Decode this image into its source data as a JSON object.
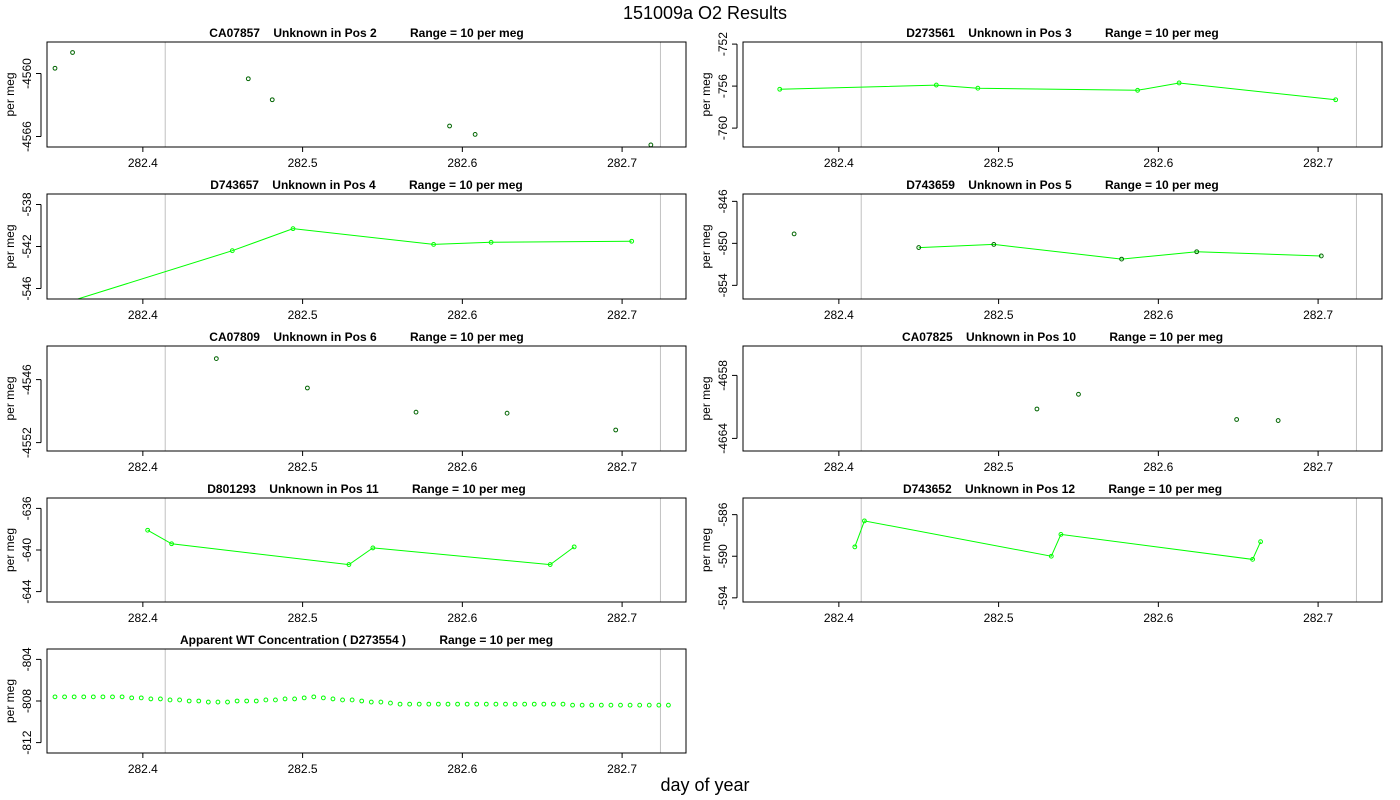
{
  "title": "151009a  O2 Results",
  "xlabel": "day of year",
  "colors": {
    "series": "#00ff00",
    "vline": "#c0c0c0",
    "axis": "#000000"
  },
  "chart_data": [
    {
      "type": "scatter",
      "title": "CA07857    Unknown in Pos 2          Range = 10 per meg",
      "ylabel": "per meg",
      "xlim": [
        282.34,
        282.74
      ],
      "ylim": [
        -4567.0,
        -4557.0
      ],
      "yticks": [
        -4560,
        -4566
      ],
      "xticks": [
        282.4,
        282.5,
        282.6,
        282.7
      ],
      "vlines": [
        282.414,
        282.724
      ],
      "points": [
        [
          282.345,
          -4559.5
        ],
        [
          282.356,
          -4558.0
        ],
        [
          282.466,
          -4560.5
        ],
        [
          282.481,
          -4562.5
        ],
        [
          282.592,
          -4565.0
        ],
        [
          282.608,
          -4565.8
        ],
        [
          282.718,
          -4566.8
        ]
      ],
      "segments": [],
      "marker_color": "#006400"
    },
    {
      "type": "line",
      "title": "D273561    Unknown in Pos 3          Range = 10 per meg",
      "ylabel": "per meg",
      "xlim": [
        282.34,
        282.74
      ],
      "ylim": [
        -761.8,
        -751.8
      ],
      "yticks": [
        -752,
        -756,
        -760
      ],
      "xticks": [
        282.4,
        282.5,
        282.6,
        282.7
      ],
      "vlines": [
        282.414,
        282.724
      ],
      "points": [
        [
          282.363,
          -756.3
        ],
        [
          282.461,
          -755.9
        ],
        [
          282.487,
          -756.2
        ],
        [
          282.587,
          -756.4
        ],
        [
          282.613,
          -755.7
        ],
        [
          282.711,
          -757.3
        ]
      ],
      "segments": [
        [
          0,
          5
        ]
      ],
      "marker_color": "#00ff00"
    },
    {
      "type": "line",
      "title": "D743657    Unknown in Pos 4          Range = 10 per meg",
      "ylabel": "per meg",
      "xlim": [
        282.34,
        282.74
      ],
      "ylim": [
        -547.0,
        -537.0
      ],
      "yticks": [
        -538,
        -542,
        -546
      ],
      "xticks": [
        282.4,
        282.5,
        282.6,
        282.7
      ],
      "vlines": [
        282.414,
        282.724
      ],
      "points": [
        [
          282.355,
          -547.2
        ],
        [
          282.456,
          -542.4
        ],
        [
          282.494,
          -540.3
        ],
        [
          282.582,
          -541.8
        ],
        [
          282.618,
          -541.6
        ],
        [
          282.706,
          -541.5
        ]
      ],
      "segments": [
        [
          0,
          5
        ]
      ],
      "marker_color": "#00ff00"
    },
    {
      "type": "line",
      "title": "D743659    Unknown in Pos 5          Range = 10 per meg",
      "ylabel": "per meg",
      "xlim": [
        282.34,
        282.74
      ],
      "ylim": [
        -855.3,
        -845.3
      ],
      "yticks": [
        -846,
        -850,
        -854
      ],
      "xticks": [
        282.4,
        282.5,
        282.6,
        282.7
      ],
      "vlines": [
        282.414,
        282.724
      ],
      "points": [
        [
          282.372,
          -849.1
        ],
        [
          282.45,
          -850.4
        ],
        [
          282.497,
          -850.1
        ],
        [
          282.577,
          -851.5
        ],
        [
          282.624,
          -850.8
        ],
        [
          282.702,
          -851.2
        ]
      ],
      "segments": [
        [
          1,
          5
        ]
      ],
      "marker_color": "#006400"
    },
    {
      "type": "scatter",
      "title": "CA07809    Unknown in Pos 6          Range = 10 per meg",
      "ylabel": "per meg",
      "xlim": [
        282.34,
        282.74
      ],
      "ylim": [
        -4552.8,
        -4542.8
      ],
      "yticks": [
        -4546,
        -4552
      ],
      "xticks": [
        282.4,
        282.5,
        282.6,
        282.7
      ],
      "vlines": [
        282.414,
        282.724
      ],
      "points": [
        [
          282.446,
          -4544.0
        ],
        [
          282.503,
          -4546.8
        ],
        [
          282.571,
          -4549.1
        ],
        [
          282.628,
          -4549.2
        ],
        [
          282.696,
          -4550.8
        ]
      ],
      "segments": [],
      "marker_color": "#006400"
    },
    {
      "type": "scatter",
      "title": "CA07825    Unknown in Pos 10          Range = 10 per meg",
      "ylabel": "per meg",
      "xlim": [
        282.34,
        282.74
      ],
      "ylim": [
        -4665.2,
        -4655.2
      ],
      "yticks": [
        -4658,
        -4664
      ],
      "xticks": [
        282.4,
        282.5,
        282.6,
        282.7
      ],
      "vlines": [
        282.414,
        282.724
      ],
      "points": [
        [
          282.524,
          -4661.2
        ],
        [
          282.55,
          -4659.8
        ],
        [
          282.649,
          -4662.2
        ],
        [
          282.675,
          -4662.3
        ]
      ],
      "segments": [],
      "marker_color": "#006400"
    },
    {
      "type": "line",
      "title": "D801293    Unknown in Pos 11          Range = 10 per meg",
      "ylabel": "per meg",
      "xlim": [
        282.34,
        282.74
      ],
      "ylim": [
        -645.0,
        -635.0
      ],
      "yticks": [
        -636,
        -640,
        -644
      ],
      "xticks": [
        282.4,
        282.5,
        282.6,
        282.7
      ],
      "vlines": [
        282.414,
        282.724
      ],
      "points": [
        [
          282.403,
          -638.1
        ],
        [
          282.418,
          -639.4
        ],
        [
          282.529,
          -641.4
        ],
        [
          282.544,
          -639.8
        ],
        [
          282.655,
          -641.4
        ],
        [
          282.67,
          -639.7
        ]
      ],
      "segments": [
        [
          0,
          5
        ]
      ],
      "marker_color": "#00ff00"
    },
    {
      "type": "line",
      "title": "D743652    Unknown in Pos 12          Range = 10 per meg",
      "ylabel": "per meg",
      "xlim": [
        282.34,
        282.74
      ],
      "ylim": [
        -594.4,
        -584.4
      ],
      "yticks": [
        -586,
        -590,
        -594
      ],
      "xticks": [
        282.4,
        282.5,
        282.6,
        282.7
      ],
      "vlines": [
        282.414,
        282.724
      ],
      "points": [
        [
          282.41,
          -589.1
        ],
        [
          282.416,
          -586.6
        ],
        [
          282.533,
          -590.0
        ],
        [
          282.539,
          -587.9
        ],
        [
          282.659,
          -590.3
        ],
        [
          282.664,
          -588.6
        ]
      ],
      "segments": [
        [
          0,
          5
        ]
      ],
      "marker_color": "#00ff00"
    },
    {
      "type": "scatter",
      "title": "Apparent WT Concentration ( D273554 )          Range = 10 per meg",
      "ylabel": "per meg",
      "xlim": [
        282.34,
        282.74
      ],
      "ylim": [
        -813.0,
        -803.0
      ],
      "yticks": [
        -804,
        -808,
        -812
      ],
      "xticks": [
        282.4,
        282.5,
        282.6,
        282.7
      ],
      "vlines": [
        282.414,
        282.724
      ],
      "points": [
        [
          282.345,
          -807.6
        ],
        [
          282.351,
          -807.6
        ],
        [
          282.357,
          -807.6
        ],
        [
          282.363,
          -807.6
        ],
        [
          282.369,
          -807.6
        ],
        [
          282.375,
          -807.6
        ],
        [
          282.381,
          -807.6
        ],
        [
          282.387,
          -807.6
        ],
        [
          282.393,
          -807.7
        ],
        [
          282.399,
          -807.7
        ],
        [
          282.405,
          -807.8
        ],
        [
          282.411,
          -807.8
        ],
        [
          282.417,
          -807.9
        ],
        [
          282.423,
          -807.9
        ],
        [
          282.429,
          -808.0
        ],
        [
          282.435,
          -808.0
        ],
        [
          282.441,
          -808.1
        ],
        [
          282.447,
          -808.1
        ],
        [
          282.453,
          -808.1
        ],
        [
          282.459,
          -808.0
        ],
        [
          282.465,
          -808.0
        ],
        [
          282.471,
          -808.0
        ],
        [
          282.477,
          -807.9
        ],
        [
          282.483,
          -807.9
        ],
        [
          282.489,
          -807.8
        ],
        [
          282.495,
          -807.8
        ],
        [
          282.501,
          -807.7
        ],
        [
          282.507,
          -807.6
        ],
        [
          282.513,
          -807.7
        ],
        [
          282.519,
          -807.8
        ],
        [
          282.525,
          -807.9
        ],
        [
          282.531,
          -807.9
        ],
        [
          282.537,
          -808.0
        ],
        [
          282.543,
          -808.1
        ],
        [
          282.549,
          -808.1
        ],
        [
          282.555,
          -808.2
        ],
        [
          282.561,
          -808.3
        ],
        [
          282.567,
          -808.3
        ],
        [
          282.573,
          -808.3
        ],
        [
          282.579,
          -808.3
        ],
        [
          282.585,
          -808.3
        ],
        [
          282.591,
          -808.3
        ],
        [
          282.597,
          -808.3
        ],
        [
          282.603,
          -808.3
        ],
        [
          282.609,
          -808.3
        ],
        [
          282.615,
          -808.3
        ],
        [
          282.621,
          -808.3
        ],
        [
          282.627,
          -808.3
        ],
        [
          282.633,
          -808.3
        ],
        [
          282.639,
          -808.3
        ],
        [
          282.645,
          -808.3
        ],
        [
          282.651,
          -808.3
        ],
        [
          282.657,
          -808.3
        ],
        [
          282.663,
          -808.3
        ],
        [
          282.669,
          -808.4
        ],
        [
          282.675,
          -808.4
        ],
        [
          282.681,
          -808.4
        ],
        [
          282.687,
          -808.4
        ],
        [
          282.693,
          -808.4
        ],
        [
          282.699,
          -808.4
        ],
        [
          282.705,
          -808.4
        ],
        [
          282.711,
          -808.4
        ],
        [
          282.717,
          -808.4
        ],
        [
          282.723,
          -808.4
        ],
        [
          282.729,
          -808.4
        ]
      ],
      "segments": [],
      "marker_color": "#00ff00"
    }
  ]
}
